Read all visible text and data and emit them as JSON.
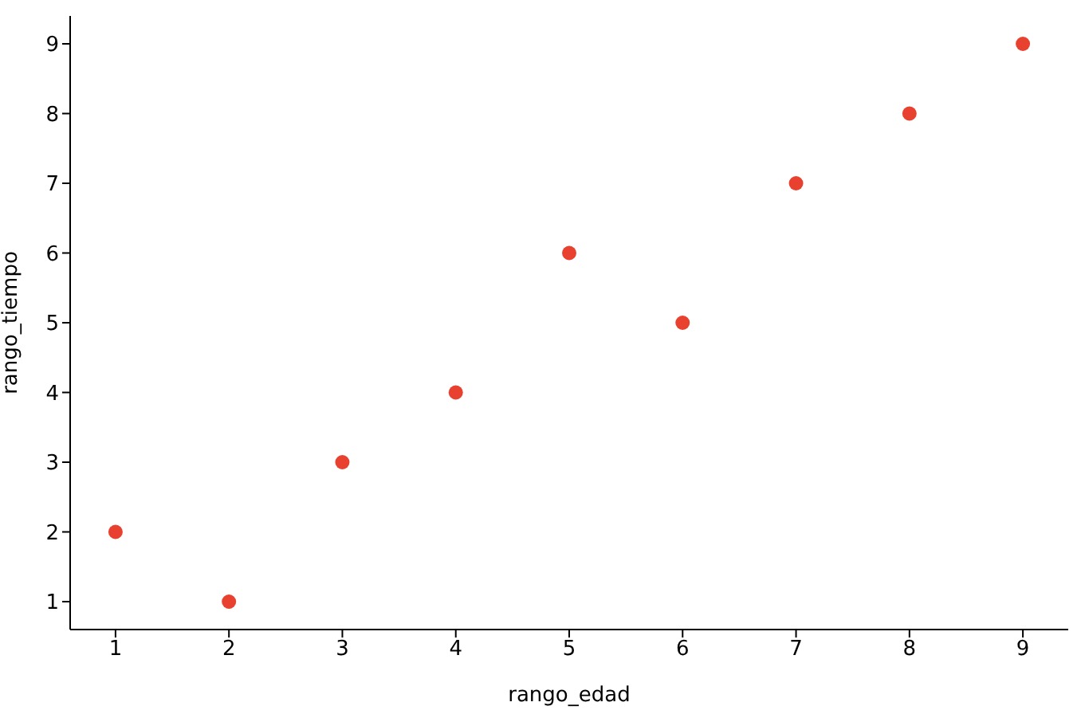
{
  "chart_data": {
    "type": "scatter",
    "xlabel": "rango_edad",
    "ylabel": "rango_tiempo",
    "x": [
      1,
      2,
      3,
      4,
      5,
      6,
      7,
      8,
      9
    ],
    "series": [
      {
        "color": "#e8412f",
        "values": [
          2,
          1,
          3,
          4,
          6,
          5,
          7,
          8,
          9
        ]
      }
    ],
    "xlim": [
      0.6,
      9.4
    ],
    "xticks": [
      1,
      2,
      3,
      4,
      5,
      6,
      7,
      8,
      9
    ],
    "ylim": [
      0.6,
      9.4
    ],
    "yticks": [
      1,
      2,
      3,
      4,
      5,
      6,
      7,
      8,
      9
    ],
    "grid": false,
    "legend": false,
    "marker": "circle"
  }
}
